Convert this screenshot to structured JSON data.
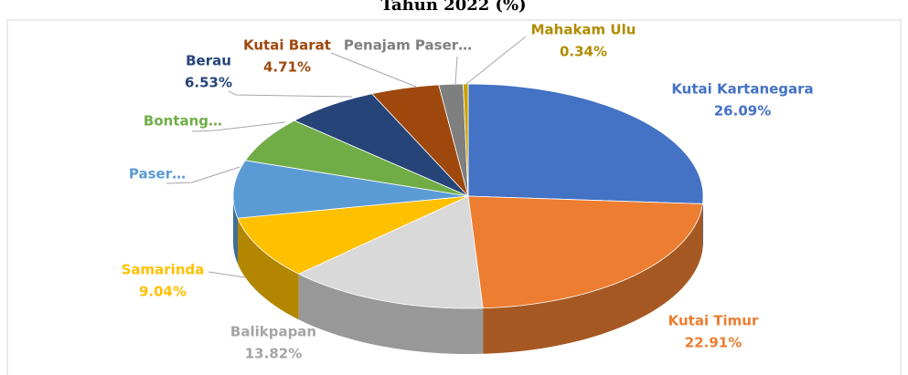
{
  "chart_data": {
    "type": "pie3d",
    "title": "Tahun 2022 (%)",
    "categories": [
      "Kutai Kartanegara",
      "Kutai Timur",
      "Balikpapan",
      "Samarinda",
      "Paser…",
      "Bontang…",
      "Berau",
      "Kutai Barat",
      "Penajam Paser…",
      "Mahakam Ulu"
    ],
    "values": [
      26.09,
      22.91,
      13.82,
      9.04,
      8.3,
      6.6,
      6.53,
      4.71,
      1.66,
      0.34
    ],
    "value_labels": [
      "26.09%",
      "22.91%",
      "13.82%",
      "9.04%",
      null,
      null,
      "6.53%",
      "4.71%",
      null,
      "0.34%"
    ],
    "colors": [
      "#4472c4",
      "#ed7d31",
      "#d9d9d9",
      "#ffc000",
      "#5b9bd5",
      "#70ad47",
      "#264478",
      "#9e480e",
      "#7f7f7f",
      "#c9a100"
    ]
  }
}
